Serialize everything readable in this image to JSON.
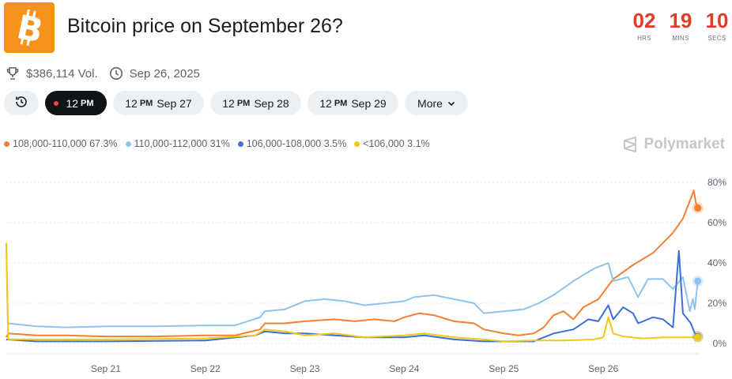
{
  "header": {
    "title": "Bitcoin price on September 26?",
    "countdown": [
      {
        "value": "02",
        "unit": "HRS"
      },
      {
        "value": "19",
        "unit": "MINS"
      },
      {
        "value": "10",
        "unit": "SECS"
      }
    ],
    "volume": "$386,114 Vol.",
    "end_date": "Sep 26, 2025",
    "accent_color": "#f7931a",
    "countdown_color": "#e23b2a"
  },
  "icons": [
    "bitcoin-logo",
    "trophy-icon",
    "clock-icon",
    "history-icon",
    "chevron-down-icon",
    "polymarket-logo"
  ],
  "tabs": [
    {
      "time": "12",
      "ampm": "PM",
      "date": ""
    },
    {
      "time": "12",
      "ampm": "PM",
      "date": "Sep 27"
    },
    {
      "time": "12",
      "ampm": "PM",
      "date": "Sep 28"
    },
    {
      "time": "12",
      "ampm": "PM",
      "date": "Sep 29"
    }
  ],
  "more_label": "More",
  "brand": "Polymarket",
  "chart_data": {
    "type": "line",
    "title": "",
    "xlabel": "",
    "ylabel": "",
    "xlim": [
      20.0,
      26.96
    ],
    "ylim": [
      0,
      80
    ],
    "x_ticks": [
      {
        "x": 21,
        "label": "Sep 21"
      },
      {
        "x": 22,
        "label": "Sep 22"
      },
      {
        "x": 23,
        "label": "Sep 23"
      },
      {
        "x": 24,
        "label": "Sep 24"
      },
      {
        "x": 25,
        "label": "Sep 25"
      },
      {
        "x": 26,
        "label": "Sep 26"
      }
    ],
    "y_ticks": [
      {
        "y": 0,
        "label": "0%"
      },
      {
        "y": 20,
        "label": "20%"
      },
      {
        "y": 40,
        "label": "40%"
      },
      {
        "y": 60,
        "label": "60%"
      },
      {
        "y": 80,
        "label": "80%"
      }
    ],
    "grid": true,
    "legend_position": "top-left",
    "series": [
      {
        "name": "108,000-110,000",
        "label": "108,000-110,000 67.3%",
        "color": "#f28030",
        "points": [
          [
            20.0,
            3
          ],
          [
            20.02,
            5
          ],
          [
            20.3,
            4
          ],
          [
            20.6,
            4
          ],
          [
            21.0,
            3.5
          ],
          [
            21.5,
            3.5
          ],
          [
            22.0,
            4
          ],
          [
            22.3,
            4
          ],
          [
            22.55,
            7
          ],
          [
            22.6,
            10
          ],
          [
            22.8,
            10
          ],
          [
            23.0,
            11
          ],
          [
            23.3,
            12
          ],
          [
            23.5,
            11
          ],
          [
            23.7,
            12
          ],
          [
            23.9,
            11
          ],
          [
            24.0,
            13
          ],
          [
            24.15,
            15
          ],
          [
            24.3,
            14
          ],
          [
            24.5,
            11
          ],
          [
            24.7,
            10
          ],
          [
            24.8,
            7
          ],
          [
            25.0,
            5
          ],
          [
            25.15,
            4
          ],
          [
            25.3,
            5
          ],
          [
            25.4,
            8
          ],
          [
            25.5,
            14
          ],
          [
            25.6,
            16
          ],
          [
            25.7,
            12
          ],
          [
            25.8,
            18
          ],
          [
            25.95,
            22
          ],
          [
            26.1,
            32
          ],
          [
            26.3,
            39
          ],
          [
            26.5,
            45
          ],
          [
            26.7,
            55
          ],
          [
            26.8,
            62
          ],
          [
            26.88,
            72
          ],
          [
            26.91,
            76
          ],
          [
            26.93,
            70
          ],
          [
            26.95,
            67.3
          ]
        ]
      },
      {
        "name": "110,000-112,000",
        "label": "110,000-112,000 31%",
        "color": "#8fc2ef",
        "points": [
          [
            20.0,
            50
          ],
          [
            20.015,
            10
          ],
          [
            20.3,
            8.5
          ],
          [
            20.6,
            8
          ],
          [
            21.0,
            8.5
          ],
          [
            21.5,
            8.5
          ],
          [
            22.0,
            9
          ],
          [
            22.3,
            9
          ],
          [
            22.55,
            13
          ],
          [
            22.6,
            16
          ],
          [
            22.8,
            17
          ],
          [
            23.0,
            21
          ],
          [
            23.2,
            22
          ],
          [
            23.4,
            21
          ],
          [
            23.6,
            19
          ],
          [
            23.8,
            20
          ],
          [
            24.0,
            21
          ],
          [
            24.1,
            23
          ],
          [
            24.3,
            24
          ],
          [
            24.5,
            22
          ],
          [
            24.7,
            20
          ],
          [
            24.8,
            15
          ],
          [
            25.0,
            16
          ],
          [
            25.2,
            17
          ],
          [
            25.35,
            20
          ],
          [
            25.5,
            24
          ],
          [
            25.7,
            31
          ],
          [
            25.9,
            37
          ],
          [
            26.05,
            40
          ],
          [
            26.1,
            31
          ],
          [
            26.25,
            33
          ],
          [
            26.35,
            23
          ],
          [
            26.45,
            32
          ],
          [
            26.6,
            32
          ],
          [
            26.7,
            27
          ],
          [
            26.8,
            33
          ],
          [
            26.87,
            16
          ],
          [
            26.9,
            22
          ],
          [
            26.92,
            17
          ],
          [
            26.95,
            31
          ]
        ]
      },
      {
        "name": "106,000-108,000",
        "label": "106,000-108,000 3.5%",
        "color": "#3b6fd8",
        "points": [
          [
            20.0,
            2
          ],
          [
            20.3,
            1
          ],
          [
            21.0,
            1
          ],
          [
            22.0,
            1.5
          ],
          [
            22.5,
            4
          ],
          [
            22.6,
            6
          ],
          [
            22.8,
            5
          ],
          [
            23.0,
            5
          ],
          [
            23.3,
            4
          ],
          [
            23.6,
            3
          ],
          [
            24.0,
            3
          ],
          [
            24.2,
            4
          ],
          [
            24.5,
            2
          ],
          [
            24.8,
            1
          ],
          [
            25.0,
            1
          ],
          [
            25.3,
            1
          ],
          [
            25.5,
            5
          ],
          [
            25.7,
            7
          ],
          [
            25.85,
            12
          ],
          [
            25.95,
            11
          ],
          [
            26.05,
            19
          ],
          [
            26.1,
            12
          ],
          [
            26.2,
            18
          ],
          [
            26.3,
            15
          ],
          [
            26.35,
            10
          ],
          [
            26.5,
            13
          ],
          [
            26.6,
            12
          ],
          [
            26.7,
            8
          ],
          [
            26.76,
            46
          ],
          [
            26.8,
            15
          ],
          [
            26.88,
            10
          ],
          [
            26.92,
            5
          ],
          [
            26.95,
            3.5
          ]
        ]
      },
      {
        "name": "<106,000",
        "label": "<106,000 3.1%",
        "color": "#f2c716",
        "points": [
          [
            20.0,
            50
          ],
          [
            20.02,
            2
          ],
          [
            20.3,
            2
          ],
          [
            21.0,
            2
          ],
          [
            22.0,
            2.5
          ],
          [
            22.5,
            4
          ],
          [
            22.6,
            7
          ],
          [
            22.8,
            6
          ],
          [
            23.0,
            4
          ],
          [
            23.3,
            5
          ],
          [
            23.6,
            3
          ],
          [
            24.0,
            4
          ],
          [
            24.2,
            5
          ],
          [
            24.5,
            3
          ],
          [
            24.8,
            2
          ],
          [
            25.0,
            1
          ],
          [
            25.3,
            1.5
          ],
          [
            25.6,
            1.5
          ],
          [
            25.9,
            2
          ],
          [
            26.0,
            3
          ],
          [
            26.05,
            13
          ],
          [
            26.1,
            5
          ],
          [
            26.2,
            3.5
          ],
          [
            26.4,
            2.5
          ],
          [
            26.6,
            3
          ],
          [
            26.8,
            3
          ],
          [
            26.95,
            3.1
          ]
        ]
      }
    ]
  }
}
